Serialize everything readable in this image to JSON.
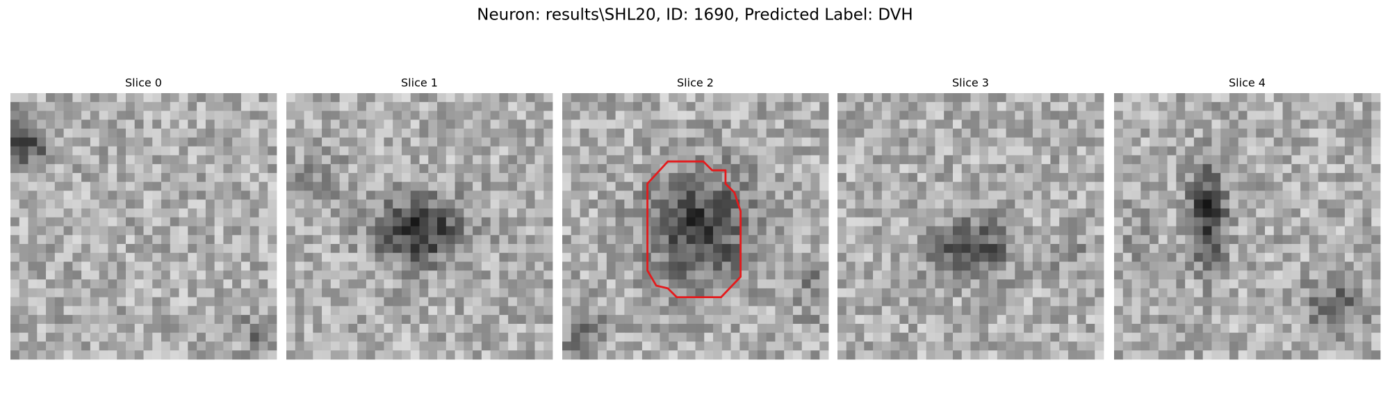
{
  "title": "Neuron: results\\SHL20, ID: 1690, Predicted Label: DVH",
  "slices": [
    "Slice 0",
    "Slice 1",
    "Slice 2",
    "Slice 3",
    "Slice 4"
  ]
}
